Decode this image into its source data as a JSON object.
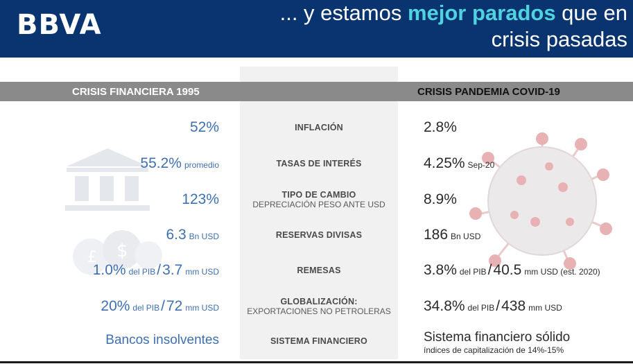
{
  "header": {
    "logo": "BBVA",
    "headline_line1_pre": "... y estamos ",
    "headline_line1_highlight": "mejor parados",
    "headline_line1_post": " que en",
    "headline_line2": "crisis pasadas"
  },
  "columns": {
    "left": "CRISIS FINANCIERA 1995",
    "right": "CRISIS PANDEMIA COVID-19"
  },
  "colors": {
    "header_bg": "#0a3470",
    "highlight": "#4fd3e0",
    "left_values": "#3e6fb0",
    "bar": "#8a8a8a"
  },
  "rows": [
    {
      "indicator": "INFLACIÓN",
      "left": {
        "main": "52%"
      },
      "right": {
        "main": "2.8%"
      }
    },
    {
      "indicator": "TASAS DE INTERÉS",
      "left": {
        "main": "55.2%",
        "suffix": "promedio"
      },
      "right": {
        "main": "4.25%",
        "suffix": "Sep-20"
      }
    },
    {
      "indicator": "TIPO DE CAMBIO",
      "indicator_sub": "DEPRECIACIÓN PESO ANTE USD",
      "left": {
        "main": "123%"
      },
      "right": {
        "main": "8.9%"
      }
    },
    {
      "indicator": "RESERVAS DIVISAS",
      "left": {
        "main": "6.3",
        "suffix": "Bn USD"
      },
      "right": {
        "main": "186",
        "suffix": "Bn USD"
      }
    },
    {
      "indicator": "REMESAS",
      "left": {
        "a": "1.0%",
        "a_unit": "del PIB",
        "sep": "/",
        "b": "3.7",
        "b_unit": "mm USD"
      },
      "right": {
        "a": "3.8%",
        "a_unit": "del PIB",
        "sep": "/",
        "b": "40.5",
        "b_unit": "mm USD (est. 2020)"
      }
    },
    {
      "indicator": "GLOBALIZACIÓN:",
      "indicator_sub": "EXPORTACIONES NO PETROLERAS",
      "left": {
        "a": "20%",
        "a_unit": "del PIB",
        "sep": "/",
        "b": "72",
        "b_unit": "mm USD"
      },
      "right": {
        "a": "34.8%",
        "a_unit": "del PIB",
        "sep": "/",
        "b": "438",
        "b_unit": "mm USD"
      }
    },
    {
      "indicator": "SISTEMA FINANCIERO",
      "left": {
        "main": "Bancos insolventes"
      },
      "right": {
        "main": "Sistema financiero sólido",
        "sub": "índices de capitalización de 14%-15%"
      }
    }
  ]
}
